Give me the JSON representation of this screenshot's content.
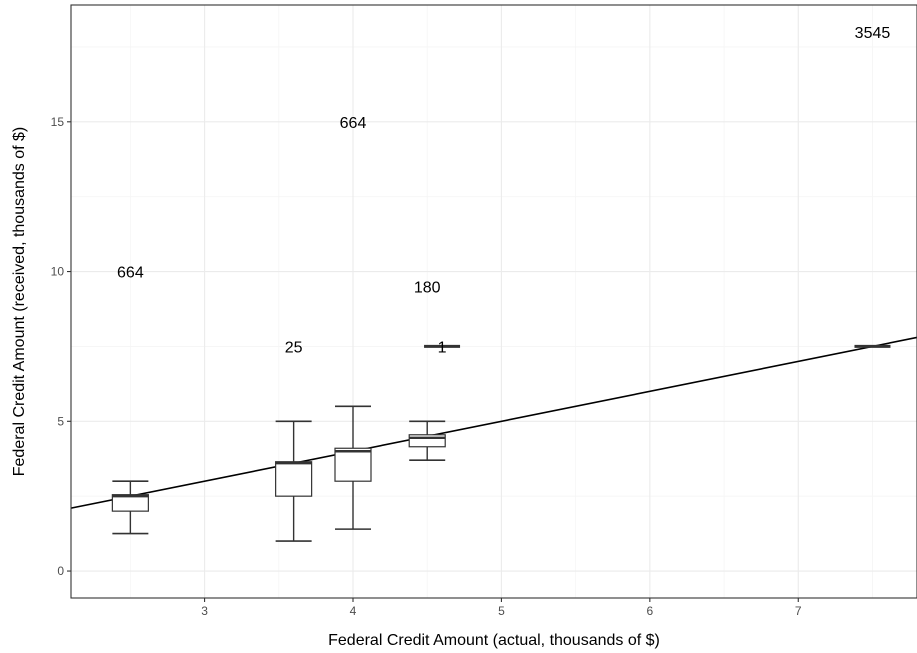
{
  "chart_data": {
    "type": "boxplot",
    "xlabel": "Federal Credit Amount (actual, thousands of $)",
    "ylabel": "Federal Credit Amount (received, thousands of $)",
    "xlim": [
      2.1,
      7.8
    ],
    "ylim": [
      -0.9,
      18.9
    ],
    "x_ticks": [
      3,
      4,
      5,
      6,
      7
    ],
    "y_ticks": [
      0,
      5,
      10,
      15
    ],
    "grid": true,
    "colors": {
      "box_fill": "#ffffff",
      "box_stroke": "#333333",
      "line": "#000000",
      "grid_major": "#ebebeb",
      "grid_minor": "#f5f5f5",
      "panel_border": "#333333"
    },
    "boxes": [
      {
        "x": 2.5,
        "whisker_low": 1.25,
        "q1": 2.0,
        "median": 2.5,
        "q3": 2.55,
        "whisker_high": 3.0,
        "count": "664",
        "label_y": 10.0
      },
      {
        "x": 3.6,
        "whisker_low": 1.0,
        "q1": 2.5,
        "median": 3.6,
        "q3": 3.65,
        "whisker_high": 5.0,
        "count": "25",
        "label_y": 7.5
      },
      {
        "x": 4.0,
        "whisker_low": 1.4,
        "q1": 3.0,
        "median": 4.0,
        "q3": 4.1,
        "whisker_high": 5.5,
        "count": "664",
        "label_y": 15.0
      },
      {
        "x": 4.5,
        "whisker_low": 3.7,
        "q1": 4.15,
        "median": 4.45,
        "q3": 4.55,
        "whisker_high": 5.0,
        "count": "180",
        "label_y": 9.5
      },
      {
        "x": 4.6,
        "whisker_low": 7.5,
        "q1": 7.5,
        "median": 7.5,
        "q3": 7.5,
        "whisker_high": 7.5,
        "count": "1",
        "label_y": 7.5
      },
      {
        "x": 7.5,
        "whisker_low": 7.5,
        "q1": 7.5,
        "median": 7.5,
        "q3": 7.5,
        "whisker_high": 7.5,
        "count": "3545",
        "label_y": 18.0
      }
    ],
    "reference_line": {
      "type": "identity",
      "points": [
        [
          2.1,
          2.1
        ],
        [
          7.8,
          7.8
        ]
      ]
    }
  }
}
